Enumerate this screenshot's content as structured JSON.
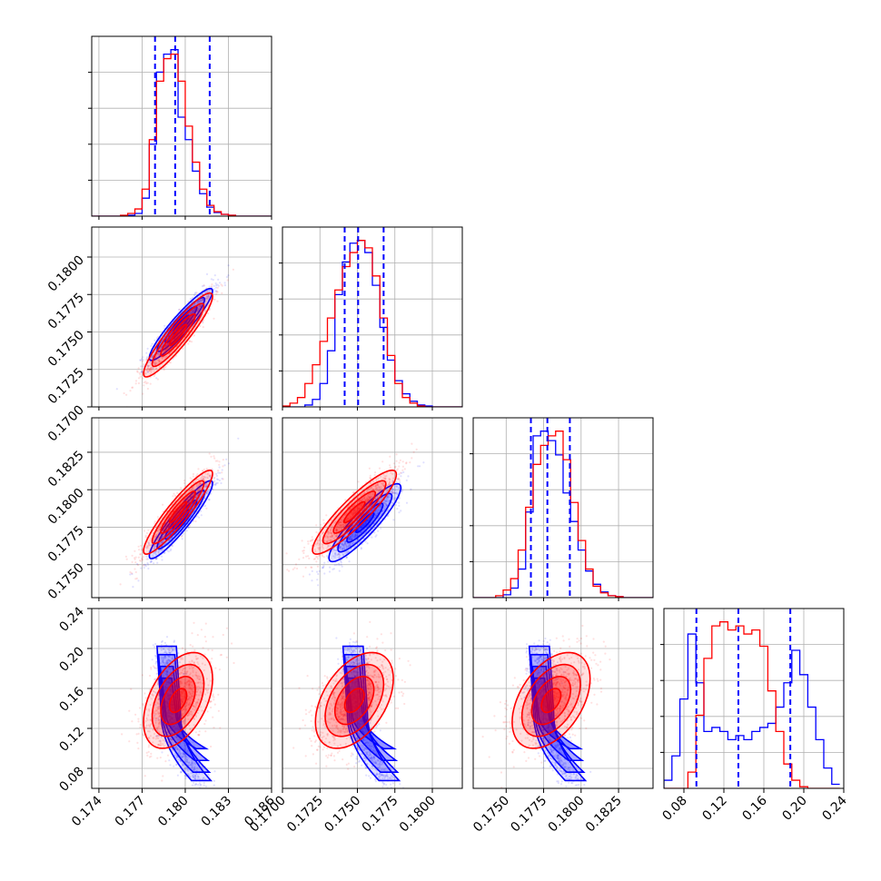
{
  "chart_data": {
    "type": "corner",
    "grid": true,
    "colors": {
      "series_a": "#0000ff",
      "series_b": "#ff0000"
    },
    "series": [
      {
        "color": "#0000ff"
      },
      {
        "color": "#ff0000"
      }
    ],
    "params": [
      {
        "range": [
          0.1735,
          0.186
        ],
        "ticks": [
          0.174,
          0.177,
          0.18,
          0.183,
          0.186
        ],
        "tick_labels": [
          "0.174",
          "0.177",
          "0.180",
          "0.183",
          "0.186"
        ]
      },
      {
        "range": [
          0.17,
          0.182
        ],
        "ticks": [
          0.17,
          0.1725,
          0.175,
          0.1775,
          0.18
        ],
        "tick_labels": [
          "0.1700",
          "0.1725",
          "0.1750",
          "0.1775",
          "0.1800"
        ]
      },
      {
        "range": [
          0.1728,
          0.1848
        ],
        "ticks": [
          0.175,
          0.1775,
          0.18,
          0.1825
        ],
        "tick_labels": [
          "0.1750",
          "0.1775",
          "0.1800",
          "0.1825"
        ]
      },
      {
        "range": [
          0.06,
          0.24
        ],
        "ticks": [
          0.08,
          0.12,
          0.16,
          0.2,
          0.24
        ],
        "tick_labels": [
          "0.08",
          "0.12",
          "0.16",
          "0.20",
          "0.24"
        ]
      }
    ],
    "diagonal": [
      {
        "bins": [
          0.1735,
          0.174,
          0.1745,
          0.175,
          0.1755,
          0.176,
          0.1765,
          0.177,
          0.1775,
          0.178,
          0.1785,
          0.179,
          0.1795,
          0.18,
          0.1805,
          0.181,
          0.1815,
          0.182,
          0.1825,
          0.183,
          0.1835,
          0.184,
          0.1845,
          0.185,
          0.1855,
          0.186
        ],
        "counts_a": [
          0,
          0,
          0,
          0,
          0,
          1,
          3,
          20,
          80,
          160,
          180,
          185,
          110,
          85,
          50,
          25,
          10,
          4,
          2,
          1,
          0,
          0,
          0,
          0,
          0
        ],
        "counts_b": [
          0,
          0,
          0,
          0,
          1,
          3,
          8,
          30,
          85,
          150,
          175,
          180,
          150,
          100,
          60,
          30,
          12,
          5,
          2,
          1,
          0,
          0,
          0,
          0,
          0
        ],
        "quantiles": [
          0.1779,
          0.1793,
          0.1817
        ]
      },
      {
        "bins": [
          0.17,
          0.1705,
          0.171,
          0.1715,
          0.172,
          0.1725,
          0.173,
          0.1735,
          0.174,
          0.1745,
          0.175,
          0.1755,
          0.176,
          0.1765,
          0.177,
          0.1775,
          0.178,
          0.1785,
          0.179,
          0.1795,
          0.18,
          0.1805,
          0.181,
          0.1815,
          0.182
        ],
        "counts_a": [
          0,
          0,
          0,
          2,
          8,
          25,
          60,
          120,
          155,
          175,
          178,
          165,
          130,
          85,
          50,
          28,
          14,
          6,
          2,
          1,
          0,
          0,
          0,
          0
        ],
        "counts_b": [
          1,
          4,
          10,
          25,
          45,
          70,
          95,
          125,
          150,
          165,
          178,
          170,
          140,
          95,
          55,
          25,
          10,
          4,
          1,
          0,
          0,
          0,
          0,
          0
        ],
        "quantiles": [
          0.17415,
          0.17505,
          0.17675
        ]
      },
      {
        "bins": [
          0.1728,
          0.1733,
          0.1738,
          0.1743,
          0.1748,
          0.1753,
          0.1758,
          0.1763,
          0.1768,
          0.1773,
          0.1778,
          0.1783,
          0.1788,
          0.1793,
          0.1798,
          0.1803,
          0.1808,
          0.1813,
          0.1818,
          0.1823,
          0.1828,
          0.1833,
          0.1838,
          0.1843,
          0.1848
        ],
        "counts_a": [
          0,
          0,
          0,
          0,
          3,
          10,
          30,
          90,
          170,
          175,
          165,
          150,
          110,
          80,
          50,
          28,
          14,
          6,
          2,
          1,
          0,
          0,
          0,
          0
        ],
        "counts_b": [
          0,
          0,
          0,
          2,
          8,
          20,
          50,
          95,
          140,
          160,
          170,
          175,
          145,
          100,
          60,
          30,
          12,
          5,
          2,
          1,
          0,
          0,
          0,
          0
        ],
        "quantiles": [
          0.17665,
          0.17775,
          0.17925
        ]
      },
      {
        "bins": [
          0.06,
          0.068,
          0.076,
          0.084,
          0.092,
          0.1,
          0.108,
          0.116,
          0.124,
          0.132,
          0.14,
          0.148,
          0.156,
          0.164,
          0.172,
          0.18,
          0.188,
          0.196,
          0.204,
          0.212,
          0.22,
          0.228,
          0.236
        ],
        "counts_a": [
          10,
          40,
          110,
          190,
          130,
          70,
          75,
          70,
          60,
          65,
          60,
          70,
          75,
          80,
          100,
          130,
          170,
          140,
          100,
          60,
          25,
          5
        ],
        "counts_b": [
          0,
          0,
          0,
          20,
          90,
          160,
          200,
          205,
          195,
          200,
          190,
          195,
          175,
          120,
          70,
          30,
          10,
          2,
          0,
          0,
          0,
          0
        ],
        "quantiles": [
          0.0925,
          0.1345,
          0.1865
        ]
      }
    ],
    "pairs": [
      {
        "row": 1,
        "col": 0,
        "blue": {
          "center": [
            0.1797,
            0.1755
          ],
          "sd": [
            0.0011,
            0.0012
          ],
          "rho": 0.93
        },
        "red": {
          "center": [
            0.1795,
            0.1748
          ],
          "sd": [
            0.0012,
            0.0014
          ],
          "rho": 0.92
        }
      },
      {
        "row": 2,
        "col": 0,
        "blue": {
          "center": [
            0.1797,
            0.178
          ],
          "sd": [
            0.0011,
            0.0013
          ],
          "rho": 0.93
        },
        "red": {
          "center": [
            0.1795,
            0.1785
          ],
          "sd": [
            0.0012,
            0.0014
          ],
          "rho": 0.92
        }
      },
      {
        "row": 2,
        "col": 1,
        "blue": {
          "center": [
            0.1755,
            0.1778
          ],
          "sd": [
            0.0012,
            0.0013
          ],
          "rho": 0.9
        },
        "red": {
          "center": [
            0.1748,
            0.1785
          ],
          "sd": [
            0.0014,
            0.0014
          ],
          "rho": 0.9
        }
      },
      {
        "row": 3,
        "col": 0,
        "blue": {
          "center": [
            0.179,
            0.135
          ],
          "sd": [
            0.0008,
            0.042
          ],
          "rho": 0.85,
          "kind": "banana"
        },
        "red": {
          "center": [
            0.1795,
            0.148
          ],
          "sd": [
            0.0012,
            0.024
          ],
          "rho": 0.45
        }
      },
      {
        "row": 3,
        "col": 1,
        "blue": {
          "center": [
            0.175,
            0.135
          ],
          "sd": [
            0.0008,
            0.042
          ],
          "rho": 0.85,
          "kind": "banana"
        },
        "red": {
          "center": [
            0.1748,
            0.148
          ],
          "sd": [
            0.0013,
            0.024
          ],
          "rho": 0.45
        }
      },
      {
        "row": 3,
        "col": 2,
        "blue": {
          "center": [
            0.1775,
            0.135
          ],
          "sd": [
            0.0008,
            0.042
          ],
          "rho": 0.85,
          "kind": "banana"
        },
        "red": {
          "center": [
            0.178,
            0.148
          ],
          "sd": [
            0.0013,
            0.024
          ],
          "rho": 0.45
        }
      }
    ]
  }
}
